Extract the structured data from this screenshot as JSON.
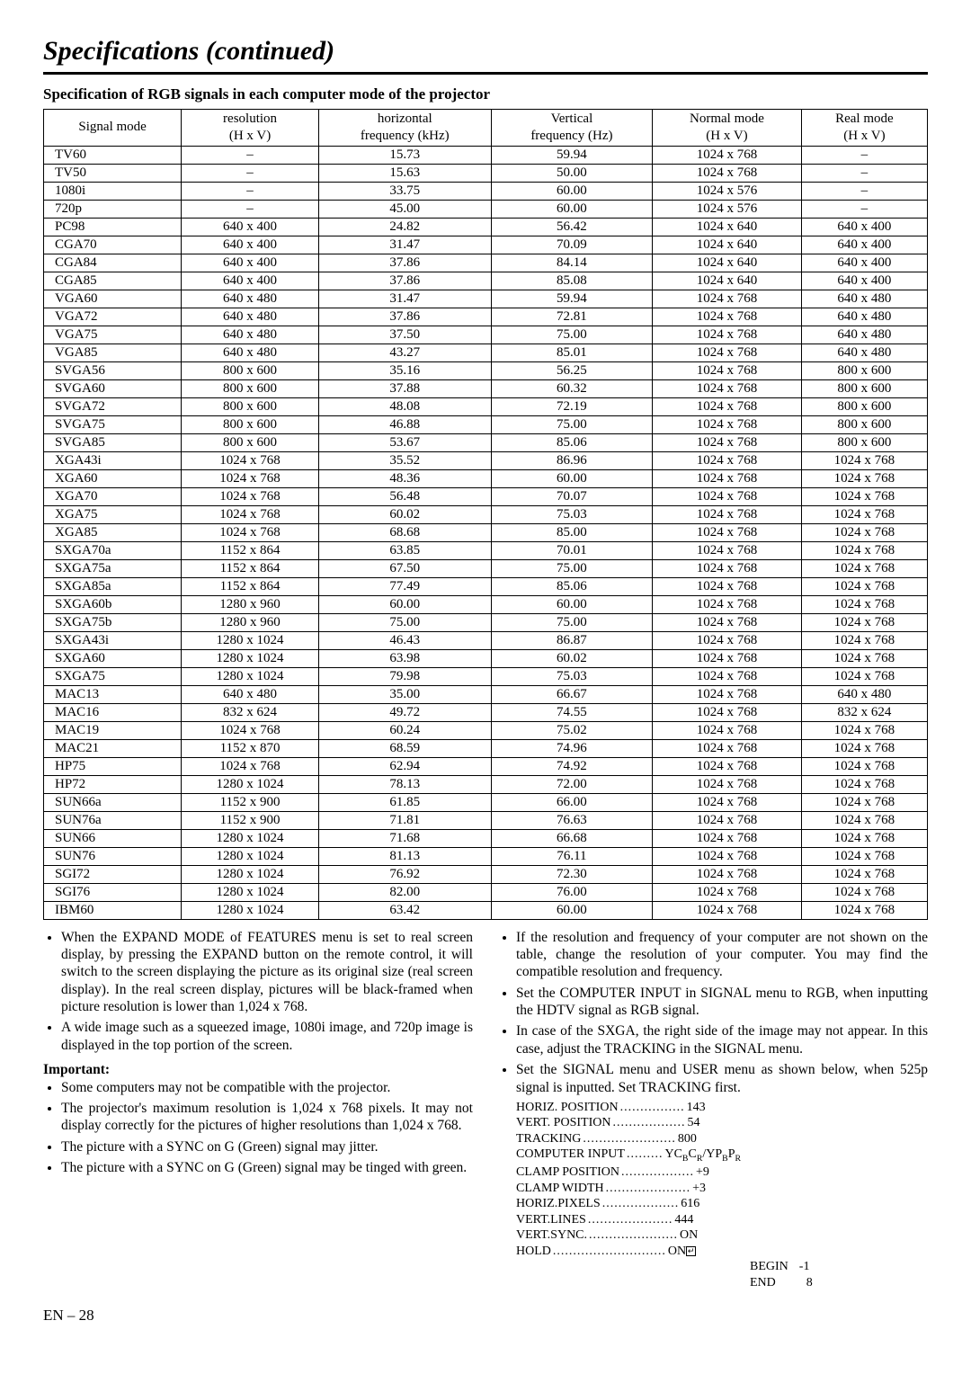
{
  "title": "Specifications (continued)",
  "subhead": "Specification of RGB signals in each computer mode of the projector",
  "table": {
    "columns": [
      {
        "line1": "Signal mode",
        "line2": ""
      },
      {
        "line1": "resolution",
        "line2": "(H x V)"
      },
      {
        "line1": "horizontal",
        "line2": "frequency (kHz)"
      },
      {
        "line1": "Vertical",
        "line2": "frequency (Hz)"
      },
      {
        "line1": "Normal mode",
        "line2": "(H x V)"
      },
      {
        "line1": "Real mode",
        "line2": "(H x V)"
      }
    ],
    "rows": [
      [
        "TV60",
        "–",
        "15.73",
        "59.94",
        "1024 x 768",
        "–"
      ],
      [
        "TV50",
        "–",
        "15.63",
        "50.00",
        "1024 x 768",
        "–"
      ],
      [
        "1080i",
        "–",
        "33.75",
        "60.00",
        "1024 x 576",
        "–"
      ],
      [
        "720p",
        "–",
        "45.00",
        "60.00",
        "1024 x 576",
        "–"
      ],
      [
        "PC98",
        "640 x 400",
        "24.82",
        "56.42",
        "1024 x 640",
        "640 x 400"
      ],
      [
        "CGA70",
        "640 x 400",
        "31.47",
        "70.09",
        "1024 x 640",
        "640 x 400"
      ],
      [
        "CGA84",
        "640 x 400",
        "37.86",
        "84.14",
        "1024 x 640",
        "640 x 400"
      ],
      [
        "CGA85",
        "640 x 400",
        "37.86",
        "85.08",
        "1024 x 640",
        "640 x 400"
      ],
      [
        "VGA60",
        "640 x 480",
        "31.47",
        "59.94",
        "1024 x 768",
        "640 x 480"
      ],
      [
        "VGA72",
        "640 x 480",
        "37.86",
        "72.81",
        "1024 x 768",
        "640 x 480"
      ],
      [
        "VGA75",
        "640 x 480",
        "37.50",
        "75.00",
        "1024 x 768",
        "640 x 480"
      ],
      [
        "VGA85",
        "640 x 480",
        "43.27",
        "85.01",
        "1024 x 768",
        "640 x 480"
      ],
      [
        "SVGA56",
        "800 x 600",
        "35.16",
        "56.25",
        "1024 x 768",
        "800 x 600"
      ],
      [
        "SVGA60",
        "800 x 600",
        "37.88",
        "60.32",
        "1024 x 768",
        "800 x 600"
      ],
      [
        "SVGA72",
        "800 x 600",
        "48.08",
        "72.19",
        "1024 x 768",
        "800 x 600"
      ],
      [
        "SVGA75",
        "800 x 600",
        "46.88",
        "75.00",
        "1024 x 768",
        "800 x 600"
      ],
      [
        "SVGA85",
        "800 x 600",
        "53.67",
        "85.06",
        "1024 x 768",
        "800 x 600"
      ],
      [
        "XGA43i",
        "1024 x 768",
        "35.52",
        "86.96",
        "1024 x 768",
        "1024 x 768"
      ],
      [
        "XGA60",
        "1024 x 768",
        "48.36",
        "60.00",
        "1024 x 768",
        "1024 x 768"
      ],
      [
        "XGA70",
        "1024 x 768",
        "56.48",
        "70.07",
        "1024 x 768",
        "1024 x 768"
      ],
      [
        "XGA75",
        "1024 x 768",
        "60.02",
        "75.03",
        "1024 x 768",
        "1024 x 768"
      ],
      [
        "XGA85",
        "1024 x 768",
        "68.68",
        "85.00",
        "1024 x 768",
        "1024 x 768"
      ],
      [
        "SXGA70a",
        "1152 x 864",
        "63.85",
        "70.01",
        "1024 x 768",
        "1024 x 768"
      ],
      [
        "SXGA75a",
        "1152 x 864",
        "67.50",
        "75.00",
        "1024 x 768",
        "1024 x 768"
      ],
      [
        "SXGA85a",
        "1152 x 864",
        "77.49",
        "85.06",
        "1024 x 768",
        "1024 x 768"
      ],
      [
        "SXGA60b",
        "1280 x 960",
        "60.00",
        "60.00",
        "1024 x 768",
        "1024 x 768"
      ],
      [
        "SXGA75b",
        "1280 x 960",
        "75.00",
        "75.00",
        "1024 x 768",
        "1024 x 768"
      ],
      [
        "SXGA43i",
        "1280 x 1024",
        "46.43",
        "86.87",
        "1024 x 768",
        "1024 x 768"
      ],
      [
        "SXGA60",
        "1280 x 1024",
        "63.98",
        "60.02",
        "1024 x 768",
        "1024 x 768"
      ],
      [
        "SXGA75",
        "1280 x 1024",
        "79.98",
        "75.03",
        "1024 x 768",
        "1024 x 768"
      ],
      [
        "MAC13",
        "640 x 480",
        "35.00",
        "66.67",
        "1024 x 768",
        "640 x 480"
      ],
      [
        "MAC16",
        "832 x 624",
        "49.72",
        "74.55",
        "1024 x 768",
        "832 x 624"
      ],
      [
        "MAC19",
        "1024 x 768",
        "60.24",
        "75.02",
        "1024 x 768",
        "1024 x 768"
      ],
      [
        "MAC21",
        "1152 x 870",
        "68.59",
        "74.96",
        "1024 x 768",
        "1024 x 768"
      ],
      [
        "HP75",
        "1024 x 768",
        "62.94",
        "74.92",
        "1024 x 768",
        "1024 x 768"
      ],
      [
        "HP72",
        "1280 x 1024",
        "78.13",
        "72.00",
        "1024 x 768",
        "1024 x 768"
      ],
      [
        "SUN66a",
        "1152 x 900",
        "61.85",
        "66.00",
        "1024 x 768",
        "1024 x 768"
      ],
      [
        "SUN76a",
        "1152 x 900",
        "71.81",
        "76.63",
        "1024 x 768",
        "1024 x 768"
      ],
      [
        "SUN66",
        "1280 x 1024",
        "71.68",
        "66.68",
        "1024 x 768",
        "1024 x 768"
      ],
      [
        "SUN76",
        "1280 x 1024",
        "81.13",
        "76.11",
        "1024 x 768",
        "1024 x 768"
      ],
      [
        "SGI72",
        "1280 x 1024",
        "76.92",
        "72.30",
        "1024 x 768",
        "1024 x 768"
      ],
      [
        "SGI76",
        "1280 x 1024",
        "82.00",
        "76.00",
        "1024 x 768",
        "1024 x 768"
      ],
      [
        "IBM60",
        "1280 x 1024",
        "63.42",
        "60.00",
        "1024 x 768",
        "1024 x 768"
      ]
    ]
  },
  "left_bullets": [
    "When the EXPAND MODE of FEATURES menu is set to real screen display, by pressing the EXPAND button on the remote control, it will switch to the screen displaying the picture as its original size (real screen display). In the real screen display, pictures will be black-framed when picture resolution is lower than 1,024 x 768.",
    "A wide image such as a squeezed image, 1080i image, and 720p image is displayed in the top portion of the screen."
  ],
  "important_label": "Important:",
  "left_important": [
    "Some computers may not be compatible with the projector.",
    "The projector's maximum resolution is 1,024 x 768 pixels. It may not display correctly for the pictures of higher resolutions than 1,024 x 768.",
    "The picture with a SYNC on G (Green) signal may jitter.",
    "The picture with a SYNC on G (Green) signal may be tinged with green."
  ],
  "right_bullets": [
    "If the resolution and frequency of your computer are not shown on the table, change the resolution of your computer. You may find the compatible resolution and frequency.",
    "Set the COMPUTER INPUT in SIGNAL menu to RGB, when inputting the HDTV signal as RGB signal.",
    "In case of the SXGA, the right side of the image may not appear. In this case, adjust the TRACKING in the SIGNAL menu.",
    "Set the SIGNAL menu and USER menu as shown below, when 525p signal is inputted. Set TRACKING first."
  ],
  "settings": [
    {
      "label": "HORIZ. POSITION",
      "value": "143"
    },
    {
      "label": "VERT. POSITION",
      "value": "54"
    },
    {
      "label": "TRACKING",
      "value": "800"
    },
    {
      "label": "COMPUTER INPUT",
      "value": "YCBCR/YPBPR",
      "special": "ycbcr"
    },
    {
      "label": "CLAMP POSITION",
      "value": "+9"
    },
    {
      "label": "CLAMP WIDTH",
      "value": "+3"
    },
    {
      "label": "HORIZ.PIXELS",
      "value": "616"
    },
    {
      "label": "VERT.LINES",
      "value": "444"
    },
    {
      "label": "VERT.SYNC.",
      "value": "ON"
    },
    {
      "label": "HOLD",
      "value": "ON",
      "special": "hold"
    }
  ],
  "hold_extra": {
    "begin_label": "BEGIN",
    "begin_val": "-1",
    "end_label": "END",
    "end_val": "8"
  },
  "page_footer": "EN – 28"
}
